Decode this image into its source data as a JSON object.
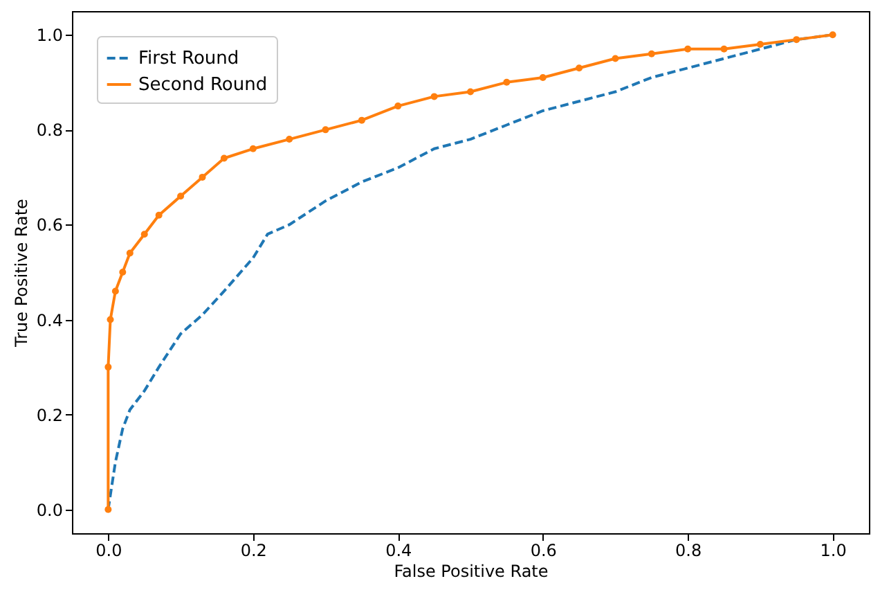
{
  "chart_data": {
    "type": "line",
    "xlabel": "False Positive Rate",
    "ylabel": "True Positive Rate",
    "xlim": [
      -0.05,
      1.05
    ],
    "ylim": [
      -0.05,
      1.05
    ],
    "xticks": [
      {
        "value": 0,
        "label": "0.0"
      },
      {
        "value": 0.2,
        "label": "0.2"
      },
      {
        "value": 0.4,
        "label": "0.4"
      },
      {
        "value": 0.6,
        "label": "0.6"
      },
      {
        "value": 0.8,
        "label": "0.8"
      },
      {
        "value": 1,
        "label": "1.0"
      }
    ],
    "yticks": [
      {
        "value": 0,
        "label": "0.0"
      },
      {
        "value": 0.2,
        "label": "0.2"
      },
      {
        "value": 0.4,
        "label": "0.4"
      },
      {
        "value": 0.6,
        "label": "0.6"
      },
      {
        "value": 0.8,
        "label": "0.8"
      },
      {
        "value": 1,
        "label": "1.0"
      }
    ],
    "grid": false,
    "legend": "top left",
    "series": [
      {
        "name": "First Round",
        "color": "#1f77b4",
        "line_style": "dashed",
        "marker": "none",
        "x": [
          0,
          0.01,
          0.02,
          0.03,
          0.05,
          0.07,
          0.1,
          0.13,
          0.16,
          0.2,
          0.22,
          0.25,
          0.3,
          0.35,
          0.4,
          0.45,
          0.5,
          0.55,
          0.6,
          0.65,
          0.7,
          0.75,
          0.8,
          0.85,
          0.9,
          0.95,
          1
        ],
        "values": [
          0,
          0.1,
          0.17,
          0.21,
          0.25,
          0.3,
          0.37,
          0.41,
          0.46,
          0.53,
          0.58,
          0.6,
          0.65,
          0.69,
          0.72,
          0.76,
          0.78,
          0.81,
          0.84,
          0.86,
          0.88,
          0.91,
          0.93,
          0.95,
          0.97,
          0.99,
          1
        ]
      },
      {
        "name": "Second Round",
        "color": "#ff7f0e",
        "line_style": "solid",
        "marker": "circle",
        "x": [
          0,
          0,
          0.003,
          0.01,
          0.02,
          0.03,
          0.05,
          0.07,
          0.1,
          0.13,
          0.16,
          0.2,
          0.25,
          0.3,
          0.35,
          0.4,
          0.45,
          0.5,
          0.55,
          0.6,
          0.65,
          0.7,
          0.75,
          0.8,
          0.85,
          0.9,
          0.95,
          1
        ],
        "values": [
          0,
          0.3,
          0.4,
          0.46,
          0.5,
          0.54,
          0.58,
          0.62,
          0.66,
          0.7,
          0.74,
          0.76,
          0.78,
          0.8,
          0.82,
          0.85,
          0.87,
          0.88,
          0.9,
          0.91,
          0.93,
          0.95,
          0.96,
          0.97,
          0.97,
          0.98,
          0.99,
          1
        ]
      }
    ]
  }
}
